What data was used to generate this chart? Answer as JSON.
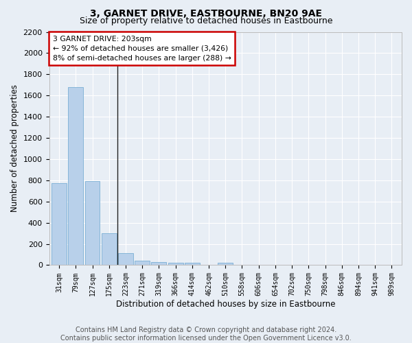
{
  "title": "3, GARNET DRIVE, EASTBOURNE, BN20 9AE",
  "subtitle": "Size of property relative to detached houses in Eastbourne",
  "xlabel": "Distribution of detached houses by size in Eastbourne",
  "ylabel": "Number of detached properties",
  "categories": [
    "31sqm",
    "79sqm",
    "127sqm",
    "175sqm",
    "223sqm",
    "271sqm",
    "319sqm",
    "366sqm",
    "414sqm",
    "462sqm",
    "510sqm",
    "558sqm",
    "606sqm",
    "654sqm",
    "702sqm",
    "750sqm",
    "798sqm",
    "846sqm",
    "894sqm",
    "941sqm",
    "989sqm"
  ],
  "values": [
    770,
    1680,
    795,
    300,
    110,
    43,
    30,
    25,
    22,
    0,
    20,
    0,
    0,
    0,
    0,
    0,
    0,
    0,
    0,
    0,
    0
  ],
  "bar_color": "#b8d0ea",
  "bar_edge_color": "#7aafd4",
  "property_line_x": 3.5,
  "annotation_text": "3 GARNET DRIVE: 203sqm\n← 92% of detached houses are smaller (3,426)\n8% of semi-detached houses are larger (288) →",
  "annotation_box_facecolor": "#ffffff",
  "annotation_box_edgecolor": "#cc0000",
  "ylim": [
    0,
    2200
  ],
  "yticks": [
    0,
    200,
    400,
    600,
    800,
    1000,
    1200,
    1400,
    1600,
    1800,
    2000,
    2200
  ],
  "background_color": "#e8eef5",
  "plot_bg_color": "#e8eef5",
  "footer": "Contains HM Land Registry data © Crown copyright and database right 2024.\nContains public sector information licensed under the Open Government Licence v3.0.",
  "title_fontsize": 10,
  "xlabel_fontsize": 8.5,
  "ylabel_fontsize": 8.5,
  "footer_fontsize": 7
}
